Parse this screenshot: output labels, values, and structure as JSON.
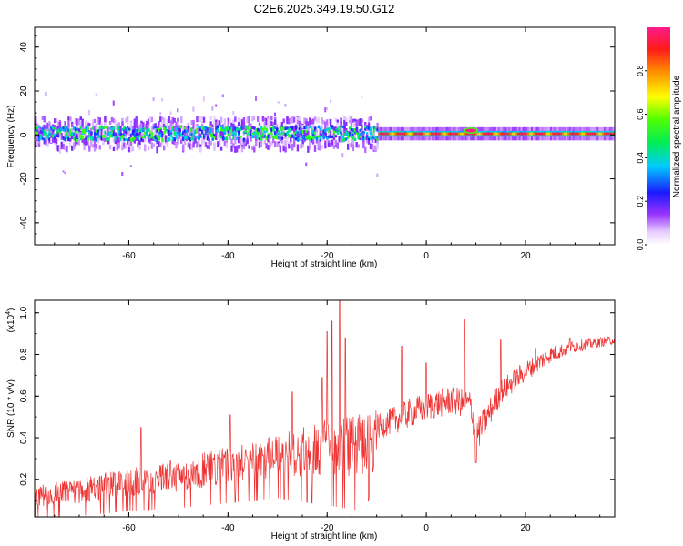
{
  "page_title": "C2E6.2025.349.19.50.G12",
  "chart_data": [
    {
      "type": "heatmap",
      "title": "C2E6.2025.349.19.50.G12",
      "xlabel": "Height of straight line (km)",
      "ylabel": "Frequency (Hz)",
      "xlim": [
        -79,
        38
      ],
      "ylim": [
        -50,
        49
      ],
      "xticks": [
        -60,
        -40,
        -20,
        0,
        20
      ],
      "yticks": [
        -40,
        -20,
        0,
        20,
        40
      ],
      "colorbar": {
        "label": "Normalized spectral amplitude",
        "range": [
          0,
          1
        ],
        "ticks": [
          0.0,
          0.2,
          0.4,
          0.6,
          0.8
        ],
        "tick_labels": [
          "0.0",
          "0.2",
          "0.4",
          "0.6",
          "0.8"
        ]
      },
      "signal_band": {
        "segments": [
          {
            "x_start": -79,
            "x_end": -10,
            "center_hz": 1,
            "core_halfwidth_hz": 3,
            "halo_halfwidth_hz": 7,
            "peak_amplitude": 0.45,
            "character": "broad, noisy"
          },
          {
            "x_start": -10,
            "x_end": 38,
            "center_hz": 0.5,
            "core_halfwidth_hz": 1,
            "halo_halfwidth_hz": 3,
            "peak_amplitude": 0.95,
            "character": "narrow, strong"
          }
        ],
        "notable_peak": {
          "x": 9,
          "frequency_hz": 2,
          "amplitude": 1.0
        }
      }
    },
    {
      "type": "line",
      "xlabel": "Height of straight line (km)",
      "ylabel": "SNR (10 * v/v)",
      "scale_label": "(x10",
      "scale_exponent": "4",
      "scale_suffix": ")",
      "xlim": [
        -79,
        38
      ],
      "ylim": [
        0.02,
        1.06
      ],
      "xticks": [
        -60,
        -40,
        -20,
        0,
        20
      ],
      "yticks": [
        0.2,
        0.4,
        0.6,
        0.8,
        1.0
      ],
      "ytick_labels": [
        "0.2",
        "0.4",
        "0.6",
        "0.8",
        "1.0"
      ],
      "color": "#ee3333",
      "series": [
        {
          "name": "SNR",
          "trend_x": [
            -79,
            -70,
            -60,
            -50,
            -40,
            -30,
            -20,
            -12,
            -10,
            -5,
            0,
            5,
            9,
            10,
            15,
            20,
            25,
            30,
            38
          ],
          "trend_y": [
            0.1,
            0.12,
            0.16,
            0.19,
            0.23,
            0.27,
            0.3,
            0.3,
            0.45,
            0.5,
            0.55,
            0.58,
            0.56,
            0.4,
            0.62,
            0.72,
            0.8,
            0.84,
            0.87
          ],
          "spread_y": [
            0.05,
            0.06,
            0.07,
            0.08,
            0.09,
            0.1,
            0.14,
            0.16,
            0.06,
            0.07,
            0.07,
            0.07,
            0.07,
            0.08,
            0.06,
            0.05,
            0.04,
            0.03,
            0.02
          ],
          "spikes": [
            {
              "x": -57.5,
              "y": 0.45
            },
            {
              "x": -39.5,
              "y": 0.51
            },
            {
              "x": -27,
              "y": 0.62
            },
            {
              "x": -21,
              "y": 0.69
            },
            {
              "x": -20,
              "y": 0.91
            },
            {
              "x": -19,
              "y": 0.96
            },
            {
              "x": -17.5,
              "y": 1.06
            },
            {
              "x": -16.3,
              "y": 0.88
            },
            {
              "x": -5,
              "y": 0.84
            },
            {
              "x": 0,
              "y": 0.76
            },
            {
              "x": 7.7,
              "y": 0.97
            },
            {
              "x": 15,
              "y": 0.87
            },
            {
              "x": 22,
              "y": 0.83
            },
            {
              "x": 29,
              "y": 0.88
            }
          ],
          "dips": [
            {
              "x": 10,
              "y": 0.28
            }
          ]
        }
      ]
    }
  ]
}
